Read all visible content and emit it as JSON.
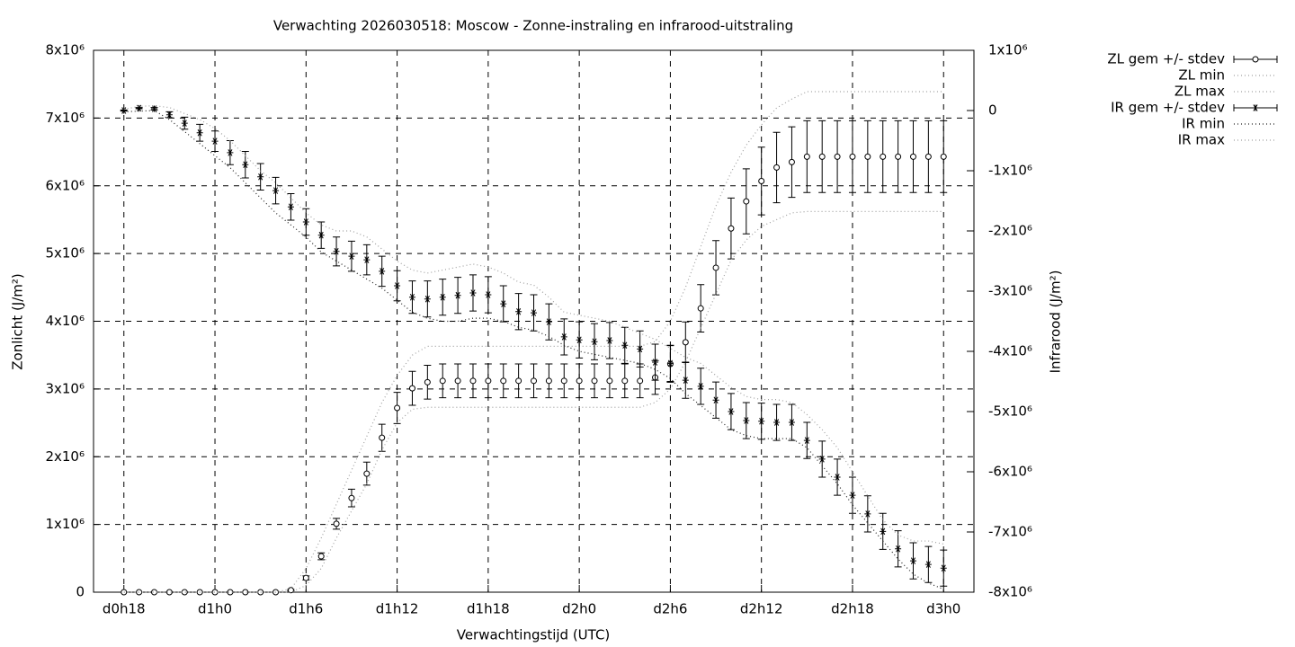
{
  "chart_data": {
    "type": "errorbar",
    "title": "Verwachting 2026030518: Moscow - Zonne-instraling en infrarood-uitstraling",
    "xlabel": "Verwachtingstijd (UTC)",
    "ylabel": "Zonlicht (J/m²)",
    "y2label": "Infrarood (J/m²)",
    "grid": true,
    "legend": "outside-top-right",
    "x": [
      18,
      19,
      20,
      21,
      22,
      23,
      24,
      25,
      26,
      27,
      28,
      29,
      30,
      31,
      32,
      33,
      34,
      35,
      36,
      37,
      38,
      39,
      40,
      41,
      42,
      43,
      44,
      45,
      46,
      47,
      48,
      49,
      50,
      51,
      52,
      53,
      54,
      55,
      56,
      57,
      58,
      59,
      60,
      61,
      62,
      63,
      64,
      65,
      66,
      67,
      68,
      69,
      70,
      71,
      72
    ],
    "xlim": [
      16,
      74
    ],
    "xticks": [
      {
        "value": 18,
        "label": "d0h18"
      },
      {
        "value": 24,
        "label": "d1h0"
      },
      {
        "value": 30,
        "label": "d1h6"
      },
      {
        "value": 36,
        "label": "d1h12"
      },
      {
        "value": 42,
        "label": "d1h18"
      },
      {
        "value": 48,
        "label": "d2h0"
      },
      {
        "value": 54,
        "label": "d2h6"
      },
      {
        "value": 60,
        "label": "d2h12"
      },
      {
        "value": 66,
        "label": "d2h18"
      },
      {
        "value": 72,
        "label": "d3h0"
      }
    ],
    "ylim": [
      0,
      8000000.0
    ],
    "yticks": [
      0,
      {
        "value": 1000000.0,
        "label": "1x10⁶"
      },
      {
        "value": 2000000.0,
        "label": "2x10⁶"
      },
      {
        "value": 3000000.0,
        "label": "3x10⁶"
      },
      {
        "value": 4000000.0,
        "label": "4x10⁶"
      },
      {
        "value": 5000000.0,
        "label": "5x10⁶"
      },
      {
        "value": 6000000.0,
        "label": "6x10⁶"
      },
      {
        "value": 7000000.0,
        "label": "7x10⁶"
      },
      {
        "value": 8000000.0,
        "label": "8x10⁶"
      }
    ],
    "y2lim": [
      -8000000.0,
      1000000.0
    ],
    "y2ticks": [
      {
        "value": -8000000.0,
        "label": "-8x10⁶"
      },
      {
        "value": -7000000.0,
        "label": "-7x10⁶"
      },
      {
        "value": -6000000.0,
        "label": "-6x10⁶"
      },
      {
        "value": -5000000.0,
        "label": "-5x10⁶"
      },
      {
        "value": -4000000.0,
        "label": "-4x10⁶"
      },
      {
        "value": -3000000.0,
        "label": "-3x10⁶"
      },
      {
        "value": -2000000.0,
        "label": "-2x10⁶"
      },
      {
        "value": -1000000.0,
        "label": "-1x10⁶"
      },
      0,
      {
        "value": 1000000.0,
        "label": "1x10⁶"
      }
    ],
    "series": [
      {
        "name": "ZL gem +/- stdev",
        "color": "#000000",
        "marker": "circle",
        "axis": "y",
        "values": [
          0,
          0,
          0,
          0,
          0,
          0,
          0,
          0,
          0,
          0,
          0,
          30000.0,
          210000.0,
          530000.0,
          1010000.0,
          1390000.0,
          1750000.0,
          2280000.0,
          2720000.0,
          3010000.0,
          3100000.0,
          3120000.0,
          3120000.0,
          3120000.0,
          3120000.0,
          3120000.0,
          3120000.0,
          3120000.0,
          3120000.0,
          3120000.0,
          3120000.0,
          3120000.0,
          3120000.0,
          3120000.0,
          3120000.0,
          3170000.0,
          3370000.0,
          3690000.0,
          4190000.0,
          4790000.0,
          5370000.0,
          5770000.0,
          6070000.0,
          6270000.0,
          6350000.0,
          6430000.0,
          6430000.0,
          6430000.0,
          6430000.0,
          6430000.0,
          6430000.0,
          6430000.0,
          6430000.0,
          6430000.0,
          6430000.0
        ],
        "errors": [
          0,
          0,
          0,
          0,
          0,
          0,
          0,
          0,
          0,
          0,
          0,
          10000.0,
          30000.0,
          50000.0,
          80000.0,
          130000.0,
          170000.0,
          200000.0,
          230000.0,
          250000.0,
          250000.0,
          250000.0,
          250000.0,
          250000.0,
          250000.0,
          250000.0,
          250000.0,
          250000.0,
          250000.0,
          250000.0,
          250000.0,
          250000.0,
          250000.0,
          250000.0,
          250000.0,
          250000.0,
          270000.0,
          300000.0,
          350000.0,
          400000.0,
          450000.0,
          480000.0,
          500000.0,
          520000.0,
          520000.0,
          530000.0,
          530000.0,
          530000.0,
          530000.0,
          530000.0,
          530000.0,
          530000.0,
          530000.0,
          530000.0,
          530000.0
        ]
      },
      {
        "name": "ZL min",
        "color": "#a0a0a0",
        "axis": "y",
        "values": [
          0,
          0,
          0,
          0,
          0,
          0,
          0,
          0,
          0,
          0,
          0,
          0,
          100000.0,
          350000.0,
          800000.0,
          1200000.0,
          1600000.0,
          2100000.0,
          2500000.0,
          2700000.0,
          2730000.0,
          2730000.0,
          2730000.0,
          2730000.0,
          2730000.0,
          2730000.0,
          2730000.0,
          2730000.0,
          2730000.0,
          2730000.0,
          2730000.0,
          2730000.0,
          2730000.0,
          2730000.0,
          2730000.0,
          2800000.0,
          3000000.0,
          3400000.0,
          3900000.0,
          4400000.0,
          4900000.0,
          5200000.0,
          5400000.0,
          5500000.0,
          5600000.0,
          5620000.0,
          5620000.0,
          5620000.0,
          5620000.0,
          5620000.0,
          5620000.0,
          5620000.0,
          5620000.0,
          5620000.0,
          5620000.0
        ]
      },
      {
        "name": "ZL max",
        "color": "#a0a0a0",
        "axis": "y",
        "values": [
          0,
          0,
          0,
          0,
          0,
          0,
          0,
          0,
          0,
          0,
          0,
          50000.0,
          350000.0,
          800000.0,
          1300000.0,
          1800000.0,
          2300000.0,
          2800000.0,
          3200000.0,
          3500000.0,
          3630000.0,
          3630000.0,
          3630000.0,
          3630000.0,
          3630000.0,
          3630000.0,
          3630000.0,
          3630000.0,
          3630000.0,
          3630000.0,
          3630000.0,
          3630000.0,
          3630000.0,
          3630000.0,
          3630000.0,
          3700000.0,
          4000000.0,
          4500000.0,
          5100000.0,
          5700000.0,
          6200000.0,
          6600000.0,
          6900000.0,
          7150000.0,
          7280000.0,
          7390000.0,
          7390000.0,
          7390000.0,
          7390000.0,
          7390000.0,
          7390000.0,
          7390000.0,
          7390000.0,
          7390000.0,
          7390000.0
        ]
      },
      {
        "name": "IR gem +/- stdev",
        "color": "#000000",
        "marker": "star",
        "axis": "y2",
        "values": [
          0,
          40000.0,
          30000.0,
          -70000.0,
          -210000.0,
          -370000.0,
          -510000.0,
          -700000.0,
          -900000.0,
          -1100000.0,
          -1330000.0,
          -1600000.0,
          -1850000.0,
          -2070000.0,
          -2340000.0,
          -2420000.0,
          -2480000.0,
          -2670000.0,
          -2910000.0,
          -3100000.0,
          -3130000.0,
          -3100000.0,
          -3070000.0,
          -3030000.0,
          -3060000.0,
          -3210000.0,
          -3340000.0,
          -3360000.0,
          -3510000.0,
          -3760000.0,
          -3810000.0,
          -3840000.0,
          -3820000.0,
          -3900000.0,
          -3960000.0,
          -4180000.0,
          -4200000.0,
          -4480000.0,
          -4580000.0,
          -4810000.0,
          -5000000.0,
          -5150000.0,
          -5160000.0,
          -5180000.0,
          -5180000.0,
          -5480000.0,
          -5790000.0,
          -6090000.0,
          -6390000.0,
          -6700000.0,
          -6990000.0,
          -7280000.0,
          -7480000.0,
          -7540000.0,
          -7600000.0
        ],
        "errors": [
          10000.0,
          10000.0,
          20000.0,
          50000.0,
          100000.0,
          140000.0,
          170000.0,
          200000.0,
          220000.0,
          220000.0,
          220000.0,
          220000.0,
          220000.0,
          220000.0,
          240000.0,
          250000.0,
          250000.0,
          250000.0,
          250000.0,
          270000.0,
          300000.0,
          300000.0,
          300000.0,
          300000.0,
          300000.0,
          300000.0,
          300000.0,
          300000.0,
          300000.0,
          300000.0,
          300000.0,
          300000.0,
          300000.0,
          300000.0,
          300000.0,
          300000.0,
          300000.0,
          300000.0,
          300000.0,
          300000.0,
          300000.0,
          300000.0,
          300000.0,
          300000.0,
          300000.0,
          300000.0,
          300000.0,
          300000.0,
          300000.0,
          300000.0,
          300000.0,
          300000.0,
          300000.0,
          300000.0,
          300000.0
        ]
      },
      {
        "name": "IR min",
        "color": "#202020",
        "axis": "y2",
        "values": [
          -20000.0,
          -10000.0,
          0,
          -150000.0,
          -350000.0,
          -550000.0,
          -750000.0,
          -950000.0,
          -1200000.0,
          -1450000.0,
          -1700000.0,
          -1900000.0,
          -2100000.0,
          -2350000.0,
          -2500000.0,
          -2650000.0,
          -2800000.0,
          -2950000.0,
          -3150000.0,
          -3350000.0,
          -3450000.0,
          -3500000.0,
          -3500000.0,
          -3450000.0,
          -3450000.0,
          -3500000.0,
          -3600000.0,
          -3650000.0,
          -3750000.0,
          -3900000.0,
          -4000000.0,
          -4050000.0,
          -4100000.0,
          -4150000.0,
          -4200000.0,
          -4300000.0,
          -4450000.0,
          -4700000.0,
          -4900000.0,
          -5100000.0,
          -5300000.0,
          -5400000.0,
          -5450000.0,
          -5450000.0,
          -5450000.0,
          -5600000.0,
          -5900000.0,
          -6200000.0,
          -6550000.0,
          -6850000.0,
          -7150000.0,
          -7450000.0,
          -7700000.0,
          -7850000.0,
          -7950000.0
        ]
      },
      {
        "name": "IR max",
        "color": "#a0a0a0",
        "axis": "y2",
        "values": [
          20000.0,
          70000.0,
          80000.0,
          50000.0,
          -50000.0,
          -150000.0,
          -300000.0,
          -500000.0,
          -750000.0,
          -1000000.0,
          -1200000.0,
          -1450000.0,
          -1700000.0,
          -1900000.0,
          -2000000.0,
          -2000000.0,
          -2100000.0,
          -2300000.0,
          -2500000.0,
          -2650000.0,
          -2700000.0,
          -2650000.0,
          -2600000.0,
          -2550000.0,
          -2600000.0,
          -2700000.0,
          -2850000.0,
          -2900000.0,
          -3100000.0,
          -3350000.0,
          -3400000.0,
          -3450000.0,
          -3500000.0,
          -3600000.0,
          -3700000.0,
          -3800000.0,
          -3950000.0,
          -4100000.0,
          -4200000.0,
          -4400000.0,
          -4600000.0,
          -4750000.0,
          -4800000.0,
          -4800000.0,
          -4850000.0,
          -5050000.0,
          -5300000.0,
          -5600000.0,
          -6000000.0,
          -6400000.0,
          -6800000.0,
          -7050000.0,
          -7150000.0,
          -7150000.0,
          -7200000.0
        ]
      }
    ]
  }
}
